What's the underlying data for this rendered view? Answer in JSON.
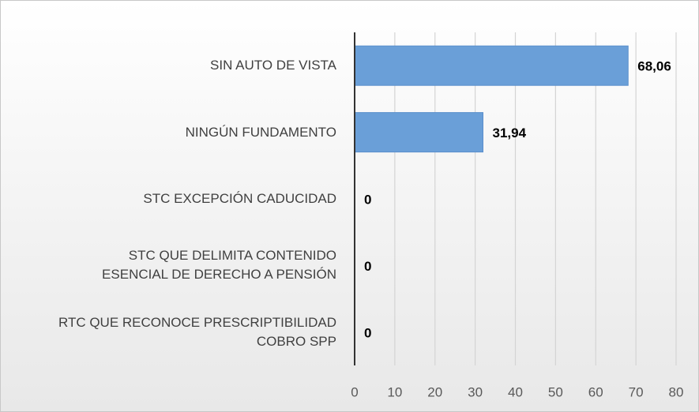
{
  "chart_data": {
    "type": "bar",
    "orientation": "horizontal",
    "categories": [
      "SIN AUTO DE VISTA",
      "NINGÚN FUNDAMENTO",
      "STC EXCEPCIÓN CADUCIDAD",
      "STC QUE DELIMITA CONTENIDO\nESENCIAL DE DERECHO A PENSIÓN",
      "RTC QUE RECONOCE PRESCRIPTIBILIDAD\nCOBRO SPP"
    ],
    "values": [
      68.06,
      31.94,
      0,
      0,
      0
    ],
    "value_labels": [
      "68,06",
      "31,94",
      "0",
      "0",
      "0"
    ],
    "color": "#6a9fd8",
    "xlim": [
      0,
      80
    ],
    "xticks": [
      0,
      10,
      20,
      30,
      40,
      50,
      60,
      70,
      80
    ],
    "grid": true
  }
}
